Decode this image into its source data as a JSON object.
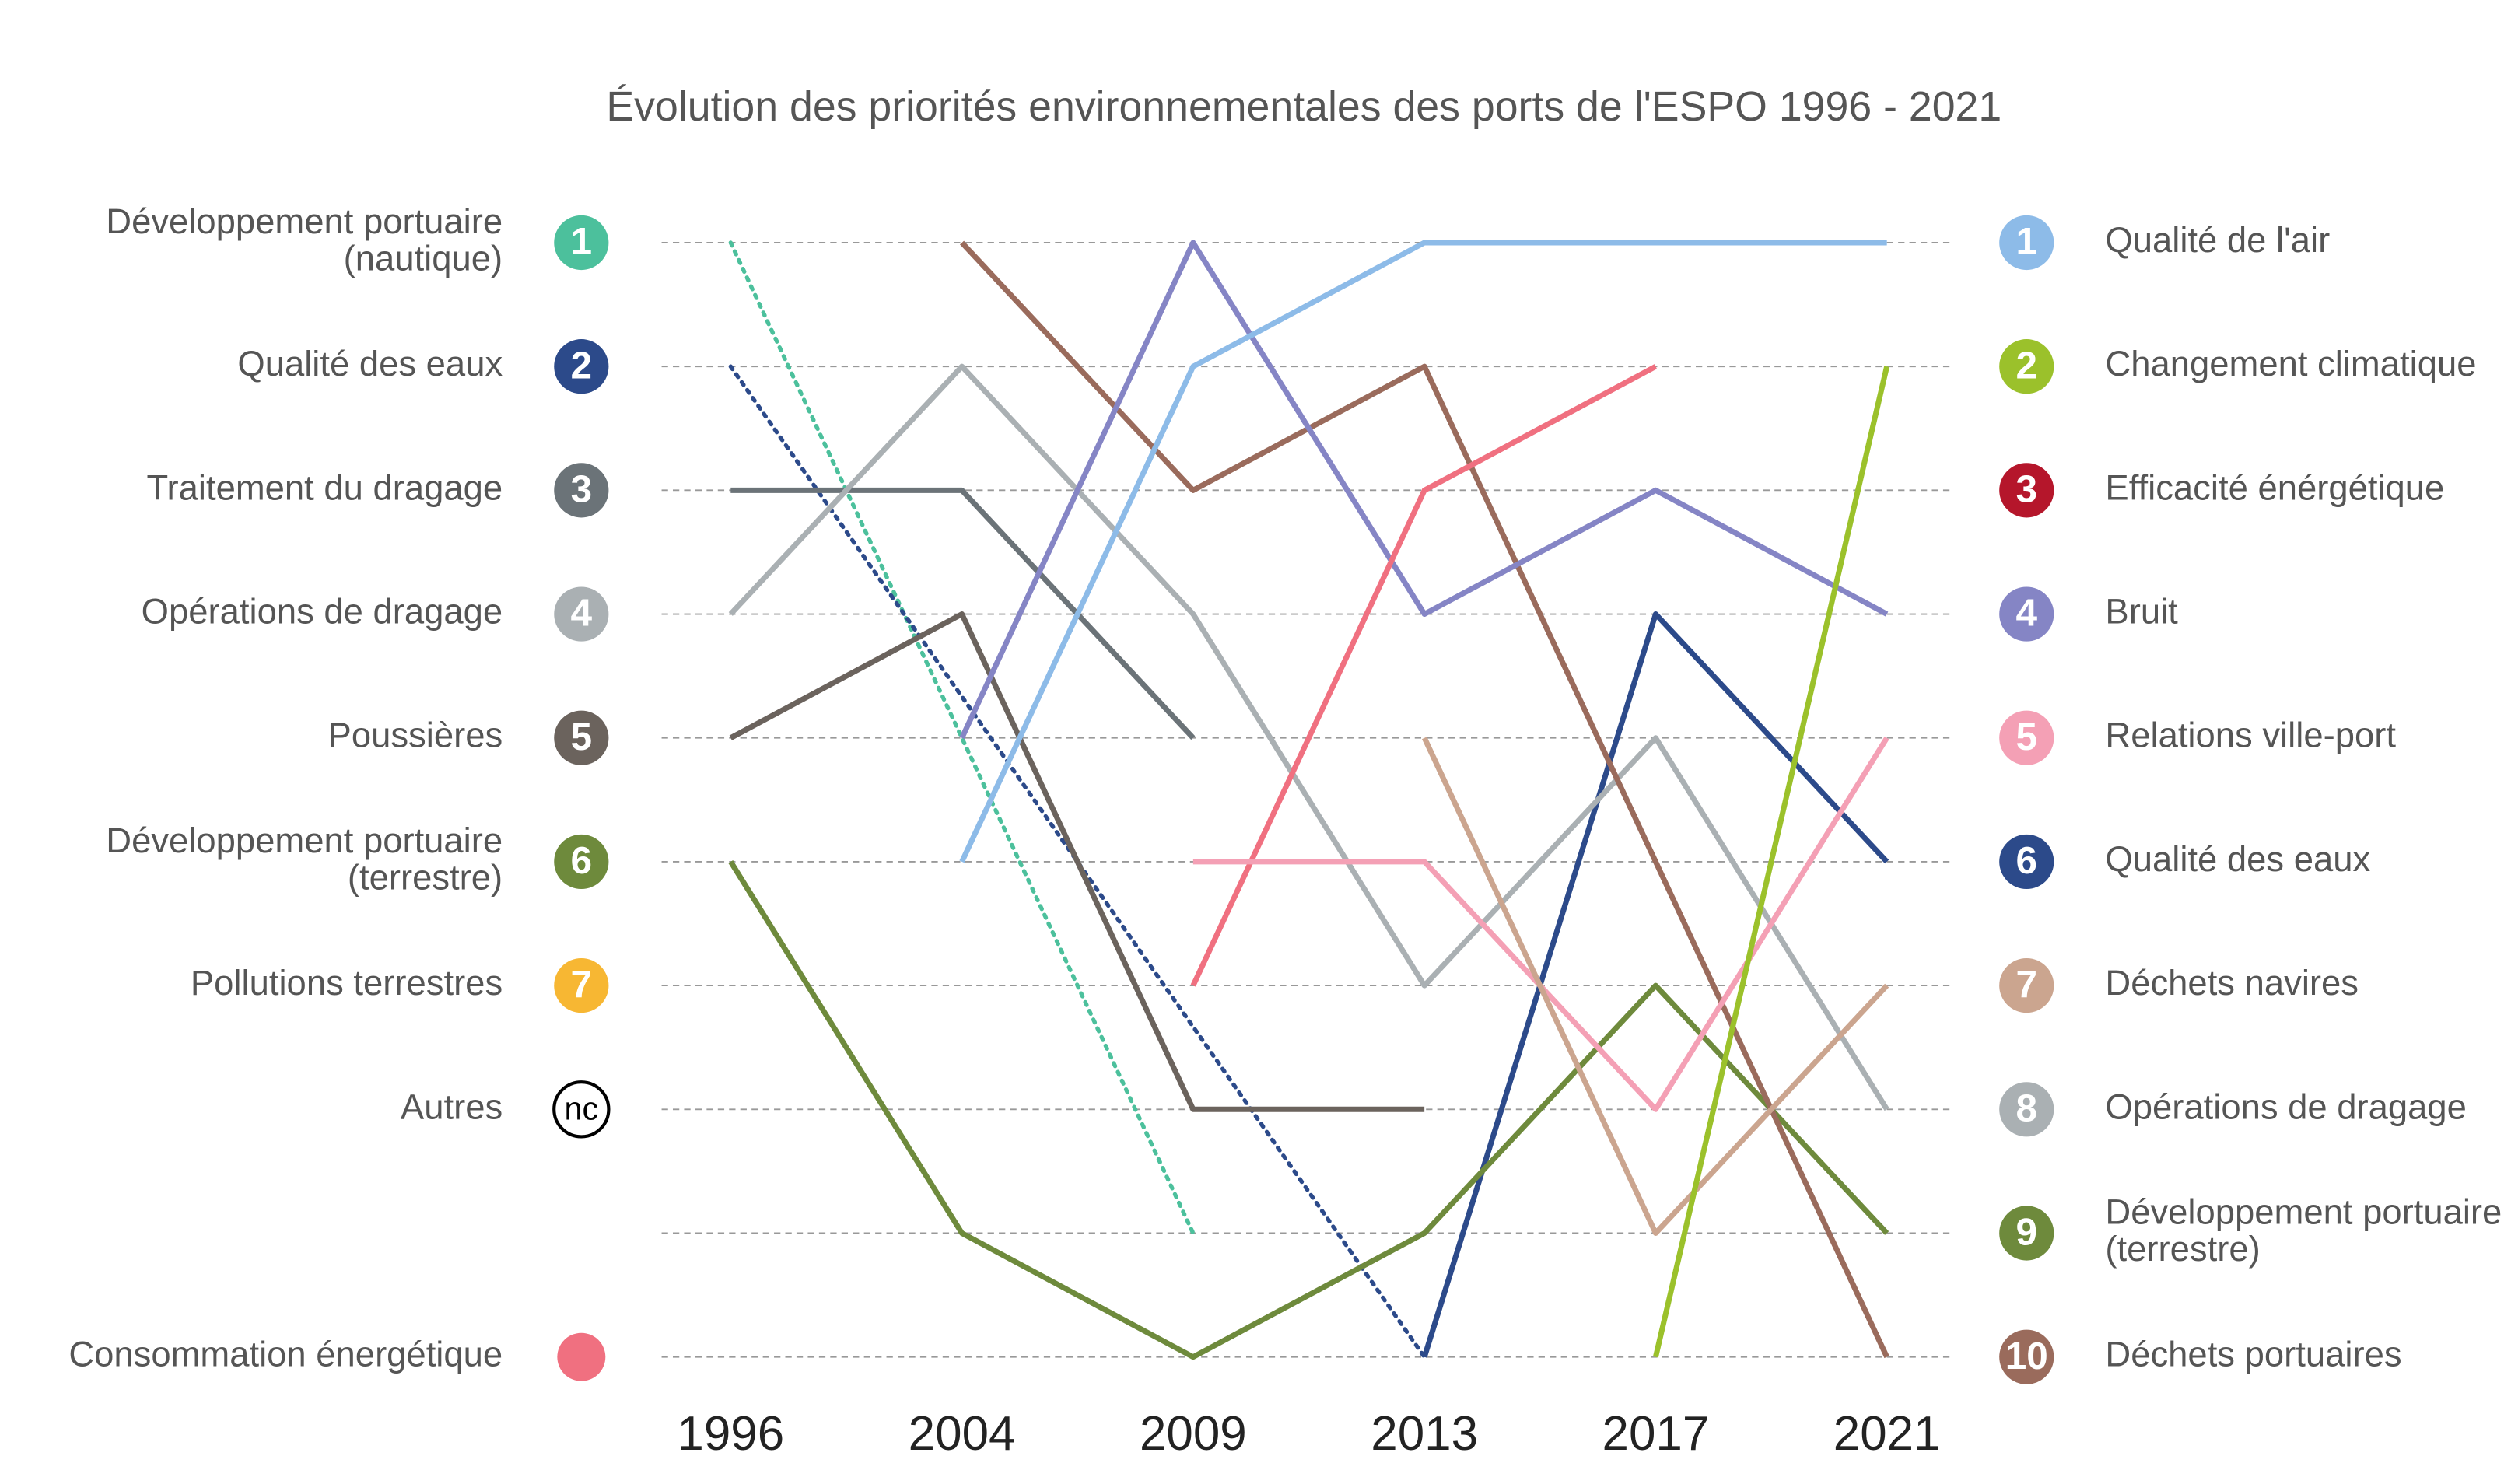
{
  "chart_data": {
    "type": "bump",
    "title": "Évolution des priorités environnementales des ports de l'ESPO 1996 - 2021",
    "categories": [
      "1996",
      "2004",
      "2009",
      "2013",
      "2017",
      "2021"
    ],
    "ylim": [
      1,
      10
    ],
    "yticks": [
      1,
      2,
      3,
      4,
      5,
      6,
      7,
      8,
      9,
      10
    ],
    "grid": true,
    "left_labels": [
      {
        "text": [
          "Développement portuaire",
          "(nautique)"
        ],
        "rank": 1,
        "color": "#4cc09c"
      },
      {
        "text": [
          "Qualité des eaux"
        ],
        "rank": 2,
        "color": "#2c4a8a"
      },
      {
        "text": [
          "Traitement du dragage"
        ],
        "rank": 3,
        "color": "#6b7378"
      },
      {
        "text": [
          "Opérations de dragage"
        ],
        "rank": 4,
        "color": "#aab0b3"
      },
      {
        "text": [
          "Poussières"
        ],
        "rank": 5,
        "color": "#6b635d"
      },
      {
        "text": [
          "Développement portuaire",
          "(terrestre)"
        ],
        "rank": 6,
        "color": "#6e8a3c"
      },
      {
        "text": [
          "Pollutions terrestres"
        ],
        "rank": 7,
        "color": "#f7b733"
      },
      {
        "text": [
          "Autres"
        ],
        "rank": {
          "value": 8,
          "label": "nc"
        },
        "color": "#000000"
      },
      {
        "text": [
          "Consommation énergétique"
        ],
        "rank": 10,
        "color": "#f07080",
        "marker": "dot"
      }
    ],
    "right_labels": [
      {
        "text": [
          "Qualité de l'air"
        ],
        "rank": 1,
        "color": "#8dbbe8"
      },
      {
        "text": [
          "Changement climatique"
        ],
        "rank": 2,
        "color": "#9bc12b"
      },
      {
        "text": [
          "Efficacité énérgétique"
        ],
        "rank": 3,
        "color": "#b5162b"
      },
      {
        "text": [
          "Bruit"
        ],
        "rank": 4,
        "color": "#8585c5"
      },
      {
        "text": [
          "Relations ville-port"
        ],
        "rank": 5,
        "color": "#f4a0b5"
      },
      {
        "text": [
          "Qualité des eaux"
        ],
        "rank": 6,
        "color": "#2c4a8a"
      },
      {
        "text": [
          "Déchets navires"
        ],
        "rank": 7,
        "color": "#cba58f"
      },
      {
        "text": [
          "Opérations de dragage"
        ],
        "rank": 8,
        "color": "#aab0b3"
      },
      {
        "text": [
          "Développement portuaire",
          "(terrestre)"
        ],
        "rank": 9,
        "color": "#6e8a3c"
      },
      {
        "text": [
          "Déchets portuaires"
        ],
        "rank": 10,
        "color": "#9a6b5c"
      }
    ],
    "series": [
      {
        "color": "#4cc09c",
        "dash": true,
        "values": [
          1,
          null,
          9,
          null,
          null,
          null
        ]
      },
      {
        "color": "#2c4a8a",
        "dash": true,
        "values": [
          2,
          null,
          null,
          10,
          null,
          null
        ]
      },
      {
        "color": "#2c4a8a",
        "values": [
          null,
          null,
          null,
          10,
          4,
          6
        ]
      },
      {
        "color": "#6b7378",
        "values": [
          3,
          3,
          5,
          null,
          null,
          null
        ]
      },
      {
        "color": "#aab0b3",
        "values": [
          4,
          2,
          4,
          7,
          5,
          8
        ]
      },
      {
        "color": "#6b635d",
        "values": [
          5,
          4,
          8,
          8,
          null,
          null
        ]
      },
      {
        "color": "#6e8a3c",
        "values": [
          6,
          9,
          10,
          9,
          7,
          9
        ]
      },
      {
        "color": "#9a6b5c",
        "values": [
          null,
          1,
          3,
          2,
          6,
          10
        ]
      },
      {
        "color": "#8585c5",
        "values": [
          null,
          5,
          1,
          4,
          3,
          4
        ]
      },
      {
        "color": "#8dbbe8",
        "values": [
          null,
          6,
          2,
          1,
          1,
          1
        ]
      },
      {
        "color": "#f07080",
        "values": [
          null,
          null,
          7,
          3,
          2,
          null
        ]
      },
      {
        "color": "#f4a0b5",
        "values": [
          null,
          null,
          6,
          6,
          8,
          5
        ]
      },
      {
        "color": "#cba58f",
        "values": [
          null,
          null,
          null,
          5,
          9,
          7
        ]
      },
      {
        "color": "#9bc12b",
        "values": [
          null,
          null,
          null,
          null,
          10,
          2
        ]
      }
    ]
  }
}
